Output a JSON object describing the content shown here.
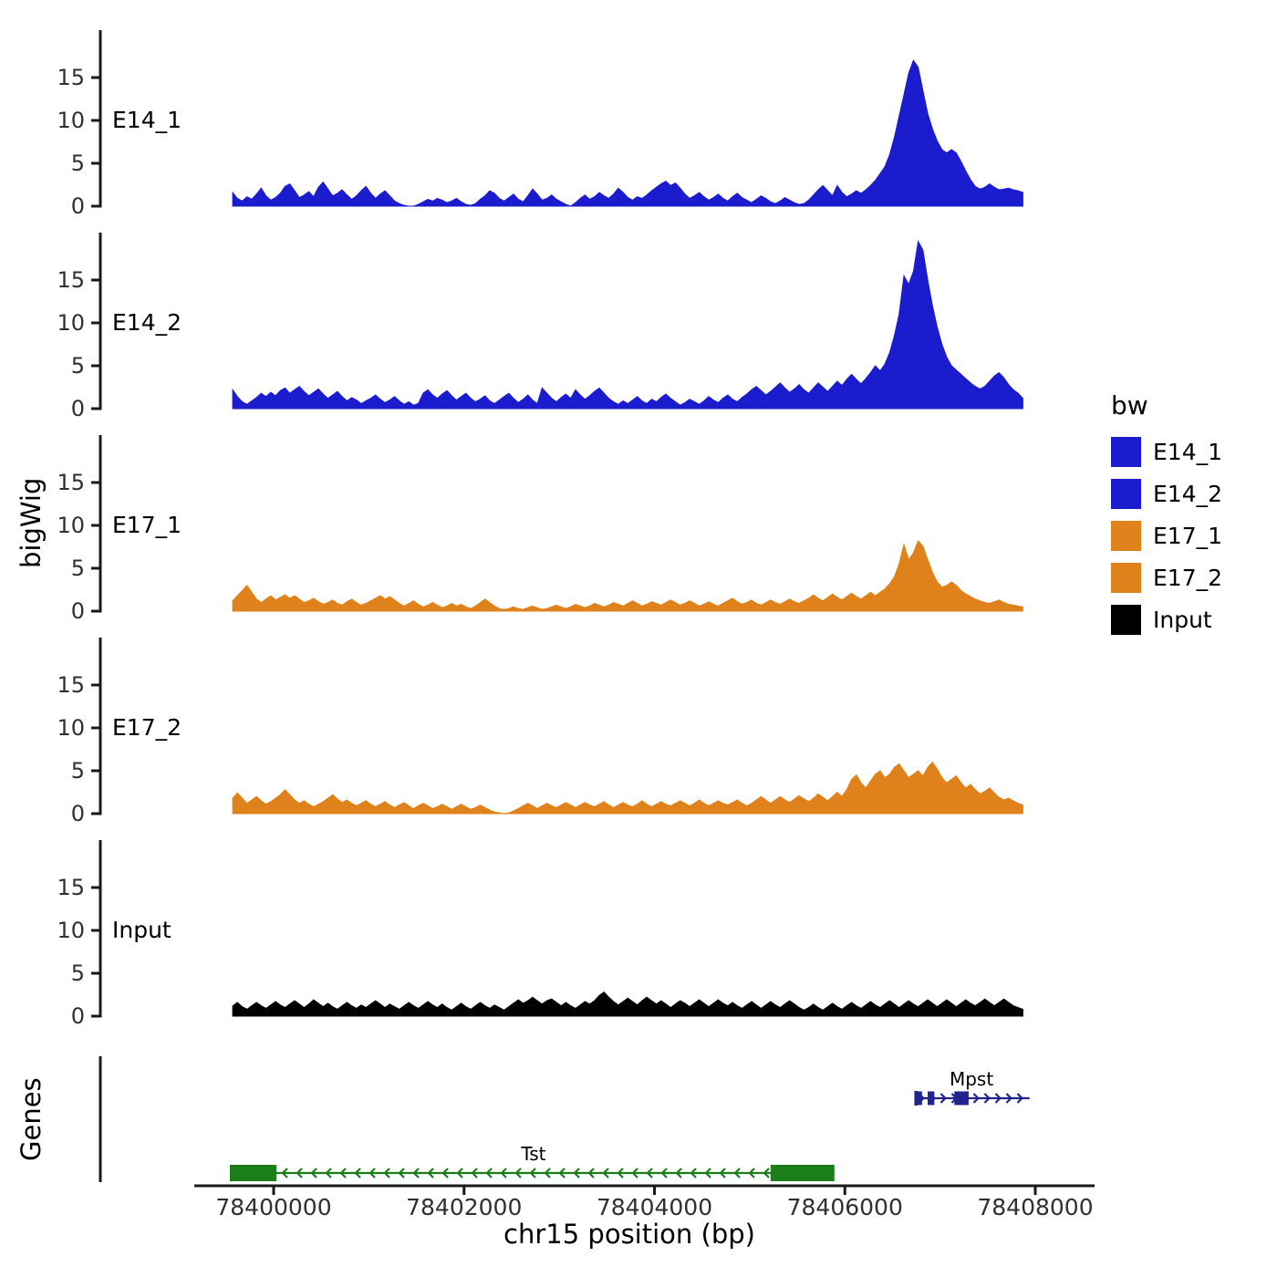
{
  "labels": {
    "y_title": "bigWig",
    "genes_title": "Genes",
    "x_title": "chr15 position (bp)"
  },
  "legend": {
    "title": "bw",
    "items": [
      {
        "label": "E14_1",
        "color": "#1c1ccf"
      },
      {
        "label": "E14_2",
        "color": "#1c1ccf"
      },
      {
        "label": "E17_1",
        "color": "#e0821b"
      },
      {
        "label": "E17_2",
        "color": "#e0821b"
      },
      {
        "label": "Input",
        "color": "#000000"
      }
    ]
  },
  "chart_data": {
    "type": "area",
    "title": "",
    "xlabel": "chr15 position (bp)",
    "ylabel": "bigWig",
    "x_range": [
      78399570,
      78407870
    ],
    "x_step": 50,
    "x_ticks": [
      78400000,
      78402000,
      78404000,
      78406000,
      78408000
    ],
    "y_ticks": [
      0,
      5,
      10,
      15
    ],
    "ylim": [
      0,
      20.5
    ],
    "legend_position": "right",
    "grid": false,
    "series": [
      {
        "name": "E14_1",
        "color": "#1c1ccf",
        "values": [
          1.6,
          0.9,
          0.6,
          1.1,
          0.8,
          1.4,
          2.1,
          1.2,
          0.7,
          1.0,
          1.5,
          2.3,
          2.6,
          1.8,
          1.0,
          1.3,
          1.7,
          1.1,
          2.2,
          2.8,
          2.0,
          1.2,
          1.5,
          1.9,
          1.3,
          0.8,
          1.2,
          1.8,
          2.3,
          1.5,
          0.9,
          1.4,
          1.8,
          1.2,
          0.6,
          0.3,
          0.1,
          0.0,
          0.0,
          0.2,
          0.5,
          0.8,
          0.6,
          0.9,
          0.7,
          0.4,
          0.6,
          0.9,
          0.5,
          0.2,
          0.1,
          0.3,
          0.8,
          1.2,
          1.8,
          1.5,
          0.9,
          0.6,
          1.0,
          1.4,
          0.8,
          0.5,
          1.2,
          2.0,
          1.4,
          0.7,
          0.9,
          1.3,
          0.8,
          0.5,
          0.2,
          0.0,
          0.4,
          0.9,
          1.3,
          0.8,
          1.1,
          1.6,
          1.2,
          0.9,
          1.4,
          2.1,
          1.6,
          1.0,
          0.7,
          1.1,
          0.9,
          1.3,
          1.8,
          2.2,
          2.6,
          2.9,
          2.4,
          2.7,
          2.1,
          1.4,
          0.9,
          1.2,
          1.6,
          1.1,
          0.7,
          1.0,
          1.4,
          0.9,
          0.6,
          1.1,
          1.5,
          1.0,
          0.7,
          0.4,
          0.8,
          1.2,
          0.9,
          0.5,
          0.3,
          0.6,
          1.0,
          0.7,
          0.4,
          0.2,
          0.3,
          0.7,
          1.3,
          1.9,
          2.4,
          1.8,
          1.2,
          2.4,
          1.6,
          1.1,
          1.4,
          1.8,
          1.5,
          1.9,
          2.4,
          3.0,
          3.8,
          4.6,
          6.0,
          8.0,
          10.5,
          13.0,
          15.5,
          17.0,
          16.2,
          13.5,
          10.8,
          9.0,
          7.6,
          6.6,
          6.2,
          6.6,
          6.2,
          5.2,
          4.1,
          3.1,
          2.3,
          2.0,
          2.2,
          2.6,
          2.2,
          1.9,
          2.0,
          2.1,
          1.9,
          1.8,
          1.6
        ]
      },
      {
        "name": "E14_2",
        "color": "#1c1ccf",
        "values": [
          2.2,
          1.4,
          0.8,
          0.5,
          0.9,
          1.3,
          1.8,
          1.4,
          1.9,
          1.5,
          2.1,
          2.4,
          1.8,
          2.2,
          2.6,
          2.0,
          1.5,
          1.9,
          2.3,
          1.7,
          1.2,
          1.6,
          2.0,
          1.4,
          0.9,
          1.3,
          1.0,
          0.6,
          0.9,
          1.2,
          1.6,
          1.1,
          0.7,
          1.0,
          1.4,
          0.9,
          0.5,
          0.8,
          0.4,
          0.6,
          1.8,
          2.2,
          1.6,
          1.2,
          1.7,
          2.1,
          1.5,
          1.0,
          1.4,
          1.8,
          1.2,
          0.8,
          1.1,
          1.5,
          0.9,
          0.6,
          1.0,
          1.4,
          1.8,
          1.2,
          0.7,
          1.1,
          1.6,
          1.0,
          0.6,
          2.4,
          1.8,
          1.2,
          0.8,
          1.3,
          1.7,
          1.2,
          2.2,
          1.6,
          1.1,
          1.5,
          2.0,
          2.4,
          1.8,
          1.2,
          0.8,
          0.5,
          0.9,
          0.6,
          1.0,
          1.4,
          0.9,
          0.6,
          1.1,
          0.8,
          1.3,
          1.7,
          1.2,
          0.8,
          0.4,
          0.7,
          1.1,
          0.8,
          0.5,
          0.9,
          1.4,
          1.0,
          0.7,
          1.2,
          1.6,
          1.1,
          0.8,
          1.3,
          1.7,
          2.2,
          2.6,
          2.1,
          1.6,
          2.0,
          2.5,
          3.0,
          2.4,
          1.9,
          2.3,
          2.8,
          2.2,
          1.8,
          2.4,
          3.0,
          2.5,
          2.0,
          2.6,
          3.2,
          2.7,
          3.4,
          4.0,
          3.4,
          2.9,
          3.5,
          4.2,
          5.0,
          4.4,
          5.2,
          6.5,
          8.5,
          11.0,
          15.5,
          14.5,
          16.0,
          19.5,
          18.5,
          15.0,
          12.0,
          9.5,
          7.5,
          6.0,
          5.0,
          4.5,
          4.0,
          3.5,
          3.0,
          2.6,
          2.3,
          2.6,
          3.2,
          3.8,
          4.2,
          3.6,
          2.8,
          2.2,
          1.8,
          1.2
        ]
      },
      {
        "name": "E17_1",
        "color": "#e0821b",
        "values": [
          1.2,
          1.8,
          2.4,
          3.0,
          2.2,
          1.4,
          1.0,
          1.4,
          1.8,
          1.3,
          1.6,
          1.9,
          1.5,
          1.8,
          1.4,
          1.0,
          1.2,
          1.5,
          1.1,
          0.8,
          1.0,
          1.3,
          0.9,
          0.7,
          1.1,
          1.4,
          1.0,
          0.7,
          0.9,
          1.2,
          1.5,
          1.8,
          1.4,
          1.7,
          1.3,
          0.9,
          0.6,
          0.9,
          1.2,
          0.8,
          0.5,
          0.7,
          1.0,
          0.7,
          0.4,
          0.6,
          0.9,
          0.6,
          0.8,
          0.5,
          0.3,
          0.6,
          1.0,
          1.4,
          1.0,
          0.6,
          0.3,
          0.2,
          0.3,
          0.5,
          0.3,
          0.2,
          0.4,
          0.6,
          0.4,
          0.2,
          0.3,
          0.5,
          0.7,
          0.5,
          0.3,
          0.5,
          0.8,
          0.6,
          0.4,
          0.6,
          0.9,
          0.7,
          0.5,
          0.7,
          1.0,
          0.8,
          0.6,
          0.9,
          1.2,
          0.9,
          0.6,
          0.8,
          1.1,
          0.9,
          0.7,
          1.0,
          1.3,
          1.0,
          0.7,
          0.9,
          1.2,
          0.9,
          0.6,
          0.8,
          1.1,
          0.8,
          0.6,
          0.9,
          1.2,
          1.5,
          1.1,
          0.8,
          1.0,
          1.3,
          0.9,
          0.7,
          1.0,
          1.3,
          1.0,
          0.8,
          1.1,
          1.4,
          1.1,
          0.9,
          1.2,
          1.5,
          1.9,
          1.5,
          1.2,
          1.6,
          2.0,
          1.6,
          1.3,
          1.7,
          2.1,
          1.7,
          1.4,
          1.8,
          2.2,
          1.8,
          2.2,
          2.6,
          3.2,
          4.0,
          5.5,
          7.8,
          6.0,
          6.8,
          8.2,
          7.6,
          6.0,
          4.5,
          3.4,
          2.8,
          3.0,
          3.4,
          3.0,
          2.4,
          2.0,
          1.7,
          1.4,
          1.2,
          1.0,
          0.9,
          1.1,
          1.3,
          1.0,
          0.8,
          0.7,
          0.6,
          0.5
        ]
      },
      {
        "name": "E17_2",
        "color": "#e0821b",
        "values": [
          1.8,
          2.4,
          1.8,
          1.2,
          1.6,
          2.0,
          1.5,
          1.1,
          1.4,
          1.8,
          2.2,
          2.8,
          2.2,
          1.6,
          1.2,
          1.5,
          1.1,
          0.8,
          1.1,
          1.4,
          1.8,
          2.2,
          1.7,
          1.3,
          1.6,
          1.2,
          0.9,
          1.2,
          1.5,
          1.1,
          0.8,
          1.1,
          1.4,
          1.0,
          0.7,
          1.0,
          1.3,
          0.9,
          0.6,
          0.9,
          1.2,
          0.9,
          0.6,
          0.8,
          1.1,
          0.8,
          0.5,
          0.8,
          1.1,
          0.8,
          0.5,
          0.7,
          1.0,
          0.7,
          0.4,
          0.2,
          0.1,
          0.0,
          0.1,
          0.3,
          0.6,
          0.9,
          1.2,
          0.9,
          0.6,
          0.9,
          1.2,
          0.9,
          0.7,
          1.0,
          1.3,
          1.0,
          0.7,
          1.0,
          1.3,
          1.0,
          0.8,
          1.1,
          1.4,
          1.0,
          0.7,
          1.0,
          1.3,
          1.0,
          0.8,
          1.1,
          1.5,
          1.1,
          0.8,
          1.1,
          1.4,
          1.1,
          0.9,
          1.2,
          1.5,
          1.2,
          0.9,
          1.2,
          1.6,
          1.2,
          0.9,
          1.2,
          1.5,
          1.2,
          1.0,
          1.3,
          1.6,
          1.2,
          0.9,
          1.2,
          1.6,
          2.0,
          1.6,
          1.2,
          1.6,
          2.0,
          1.6,
          1.3,
          1.7,
          2.1,
          1.7,
          1.4,
          1.8,
          2.3,
          1.9,
          1.5,
          2.0,
          2.5,
          2.0,
          2.8,
          4.0,
          4.5,
          3.6,
          3.0,
          3.8,
          4.6,
          5.0,
          4.2,
          4.6,
          5.4,
          5.8,
          5.0,
          4.2,
          4.6,
          5.0,
          4.4,
          5.4,
          6.0,
          5.2,
          4.2,
          3.6,
          4.0,
          4.4,
          3.6,
          3.0,
          3.4,
          2.8,
          2.3,
          2.6,
          3.0,
          2.4,
          1.9,
          1.6,
          1.8,
          1.5,
          1.2,
          1.0
        ]
      },
      {
        "name": "Input",
        "color": "#000000",
        "values": [
          1.2,
          1.6,
          1.1,
          0.8,
          1.2,
          1.6,
          1.2,
          0.9,
          1.3,
          1.7,
          1.3,
          1.0,
          1.4,
          1.8,
          1.4,
          1.0,
          1.4,
          1.9,
          1.5,
          1.1,
          1.5,
          1.1,
          0.8,
          1.2,
          1.6,
          1.2,
          0.9,
          1.3,
          1.0,
          1.4,
          1.8,
          1.4,
          1.0,
          1.4,
          1.1,
          0.8,
          1.2,
          1.6,
          1.2,
          0.9,
          1.3,
          1.7,
          1.3,
          1.0,
          1.4,
          1.0,
          0.7,
          1.1,
          1.5,
          1.1,
          0.8,
          1.2,
          1.6,
          1.2,
          0.9,
          1.3,
          1.0,
          0.7,
          1.1,
          1.5,
          1.9,
          1.5,
          1.8,
          2.2,
          1.8,
          1.4,
          1.8,
          2.0,
          1.6,
          1.2,
          1.6,
          1.2,
          0.9,
          1.3,
          1.7,
          1.4,
          1.8,
          2.4,
          2.8,
          2.2,
          1.7,
          1.3,
          1.7,
          2.1,
          1.7,
          1.3,
          1.8,
          2.2,
          1.8,
          1.4,
          1.8,
          1.4,
          1.0,
          1.4,
          1.8,
          1.5,
          1.1,
          1.5,
          1.9,
          1.5,
          1.1,
          1.5,
          1.9,
          1.5,
          1.2,
          1.6,
          1.2,
          0.9,
          1.3,
          1.7,
          1.3,
          0.9,
          1.3,
          1.7,
          1.3,
          1.0,
          1.4,
          1.8,
          1.4,
          1.0,
          0.7,
          1.0,
          1.4,
          1.0,
          0.7,
          1.1,
          1.5,
          1.1,
          0.8,
          1.2,
          1.6,
          1.2,
          0.9,
          1.3,
          1.7,
          1.3,
          1.0,
          1.4,
          1.8,
          1.4,
          1.0,
          1.4,
          1.8,
          1.4,
          1.1,
          1.5,
          1.9,
          1.5,
          1.1,
          1.5,
          1.9,
          1.5,
          1.1,
          1.5,
          1.9,
          1.5,
          1.2,
          1.6,
          2.0,
          1.6,
          1.2,
          1.6,
          2.0,
          1.6,
          1.2,
          1.0,
          0.8
        ]
      }
    ],
    "genes": {
      "track_label": "Genes",
      "items": [
        {
          "name": "Tst",
          "strand": "-",
          "color": "#1b7e1b",
          "start": 78399540,
          "end": 78405890,
          "exons": [
            [
              78399540,
              78400030
            ],
            [
              78405220,
              78405890
            ]
          ],
          "label_pos": 78402730
        },
        {
          "name": "Mpst",
          "strand": "+",
          "color": "#23238e",
          "start": 78406730,
          "end": 78407940,
          "exons": [
            [
              78406760,
              78406810
            ],
            [
              78406870,
              78406940
            ],
            [
              78407150,
              78407300
            ]
          ],
          "label_pos": 78407330
        }
      ]
    }
  }
}
